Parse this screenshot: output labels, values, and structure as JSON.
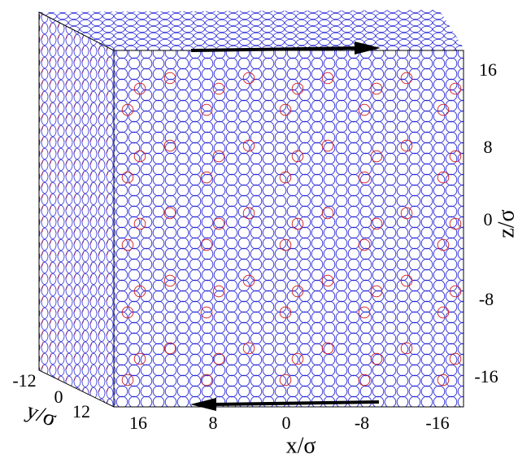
{
  "axes": {
    "x": {
      "label": "x/σ",
      "ticks": [
        "16",
        "8",
        "0",
        "-8",
        "-16"
      ]
    },
    "y": {
      "label": "y/σ",
      "ticks": [
        "-12",
        "0",
        "12"
      ]
    },
    "z": {
      "label": "z/σ",
      "ticks": [
        "16",
        "8",
        "0",
        "-8",
        "-16"
      ]
    }
  }
}
